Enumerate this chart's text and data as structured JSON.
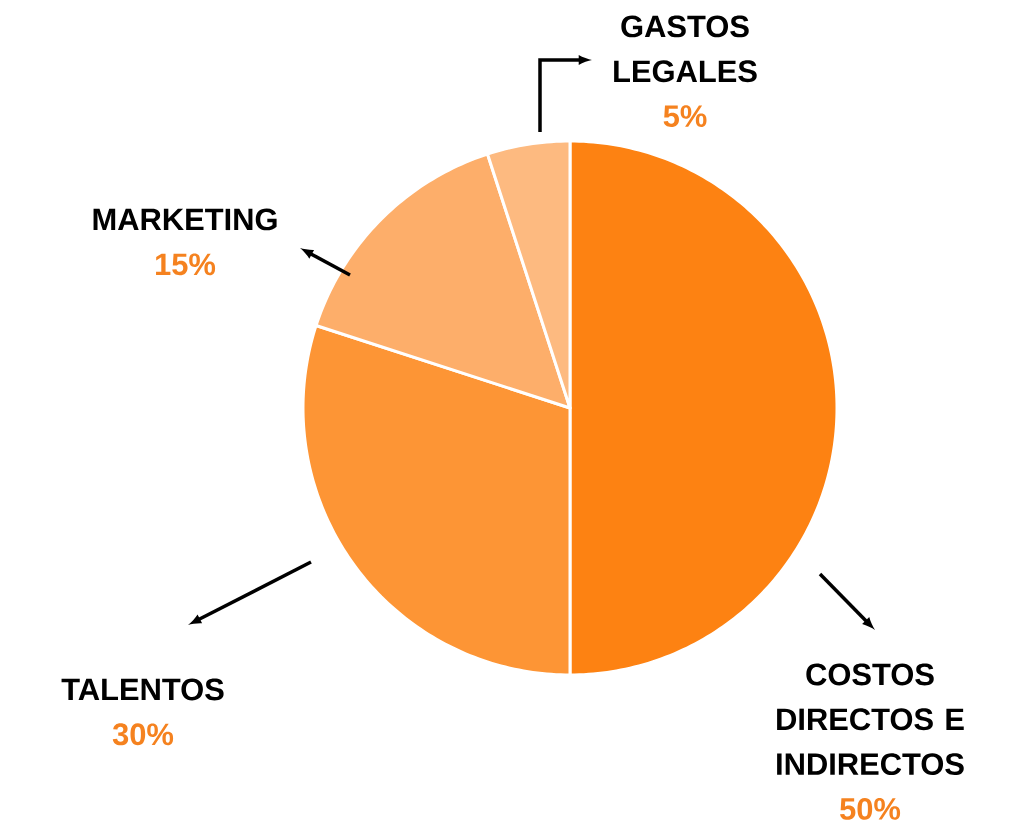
{
  "chart_data": {
    "type": "pie",
    "categories": [
      "COSTOS DIRECTOS E INDIRECTOS",
      "TALENTOS",
      "MARKETING",
      "GASTOS LEGALES"
    ],
    "values": [
      50,
      30,
      15,
      5
    ],
    "value_labels": [
      "50%",
      "30%",
      "15%",
      "5%"
    ],
    "colors": [
      "#fd8212",
      "#fd9535",
      "#fdae6a",
      "#fdba80"
    ]
  }
}
